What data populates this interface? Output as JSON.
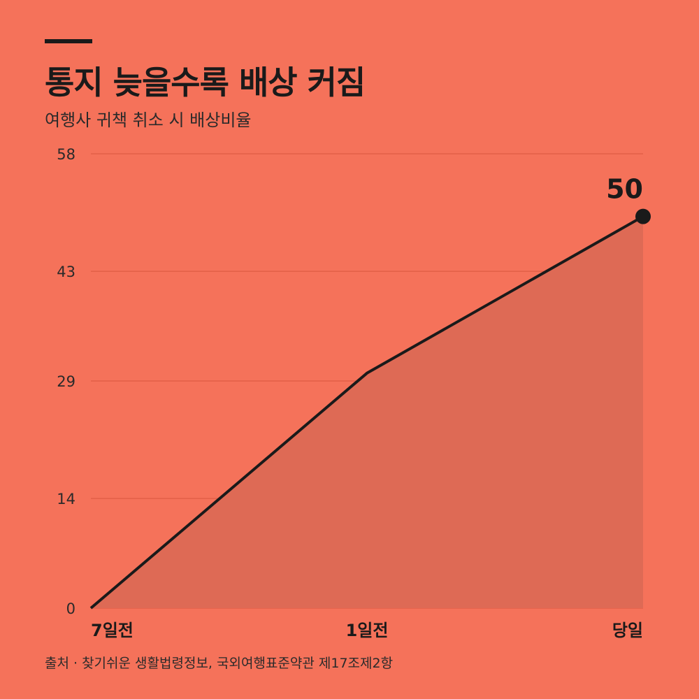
{
  "header": {
    "title": "통지 늦을수록 배상 커짐",
    "subtitle": "여행사 귀책 취소 시 배상비율"
  },
  "footer": {
    "source": "출처 · 찾기쉬운 생활법령정보, 국외여행표준약관 제17조제2항"
  },
  "colors": {
    "background": "#F5725A",
    "area_fill": "#DE6A55",
    "line": "#1a1a1a",
    "gridline": "#D9573F"
  },
  "chart_data": {
    "type": "area",
    "title": "통지 늦을수록 배상 커짐",
    "subtitle": "여행사 귀책 취소 시 배상비율",
    "categories": [
      "7일전",
      "1일전",
      "당일"
    ],
    "values": [
      0,
      30,
      50
    ],
    "yticks": [
      0,
      14,
      29,
      43,
      58
    ],
    "ylim": [
      0,
      58
    ],
    "xlabel": "",
    "ylabel": "",
    "grid": true,
    "legend": "none",
    "annotations": [
      {
        "category": "당일",
        "label": "50"
      }
    ]
  }
}
